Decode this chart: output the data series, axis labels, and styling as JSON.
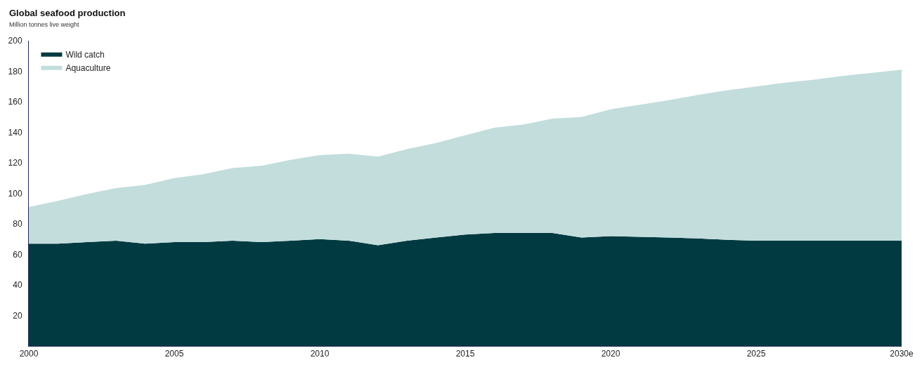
{
  "chart_data": {
    "type": "area",
    "stacked": true,
    "title": "Global seafood production",
    "subtitle": "Million tonnes live weight",
    "x": [
      2000,
      2001,
      2002,
      2003,
      2004,
      2005,
      2006,
      2007,
      2008,
      2009,
      2010,
      2011,
      2012,
      2013,
      2014,
      2015,
      2016,
      2017,
      2018,
      2019,
      2020,
      2021,
      2022,
      2023,
      2024,
      2025,
      2026,
      2027,
      2028,
      2029,
      2030
    ],
    "series": [
      {
        "name": "Wild catch",
        "color": "#023a42",
        "values": [
          67,
          67,
          68,
          69,
          67,
          68,
          68,
          69,
          68,
          69,
          70,
          69,
          66,
          69,
          71,
          73,
          74,
          74,
          74,
          71,
          72,
          71.5,
          71,
          70.5,
          69.5,
          69,
          69,
          69,
          69,
          69,
          69
        ]
      },
      {
        "name": "Aquaculture",
        "color": "#c2dddc",
        "values": [
          24,
          28,
          31.5,
          34.5,
          38.5,
          42,
          44.5,
          47.5,
          50,
          53,
          55,
          57,
          58,
          60,
          62,
          65,
          69,
          71,
          75,
          79,
          83,
          86.5,
          90,
          94,
          98,
          101,
          103.5,
          105.5,
          108,
          110,
          112
        ]
      }
    ],
    "xlim": [
      2000,
      2030
    ],
    "xticks": [
      2000,
      2005,
      2010,
      2015,
      2020,
      2025,
      {
        "value": 2030,
        "label": "2030e"
      }
    ],
    "ylim": [
      0,
      200
    ],
    "yticks": [
      20,
      40,
      60,
      80,
      100,
      120,
      140,
      160,
      180,
      200
    ],
    "legend": "top left"
  }
}
